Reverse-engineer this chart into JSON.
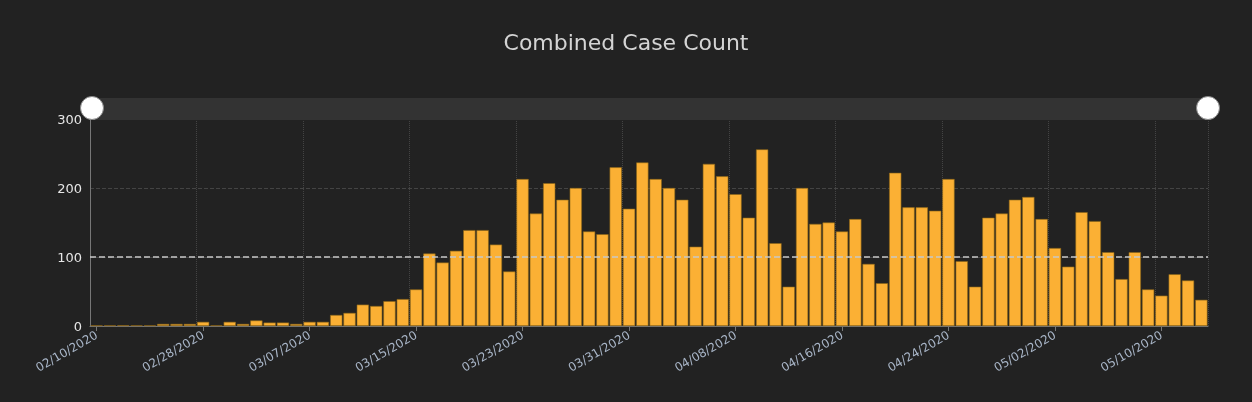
{
  "chart_data": {
    "type": "bar",
    "title": "Combined Case Count",
    "categories": [
      "02/10/2020",
      null,
      null,
      null,
      null,
      null,
      null,
      null,
      "02/28/2020",
      null,
      null,
      null,
      null,
      null,
      null,
      null,
      "03/07/2020",
      null,
      null,
      null,
      null,
      null,
      null,
      null,
      "03/15/2020",
      null,
      null,
      null,
      null,
      null,
      null,
      null,
      "03/23/2020",
      null,
      null,
      null,
      null,
      null,
      null,
      null,
      "03/31/2020",
      null,
      null,
      null,
      null,
      null,
      null,
      null,
      "04/08/2020",
      null,
      null,
      null,
      null,
      null,
      null,
      null,
      "04/16/2020",
      null,
      null,
      null,
      null,
      null,
      null,
      null,
      "04/24/2020",
      null,
      null,
      null,
      null,
      null,
      null,
      null,
      "05/02/2020",
      null,
      null,
      null,
      null,
      null,
      null,
      null,
      "05/10/2020",
      null,
      null,
      null
    ],
    "values": [
      1,
      1,
      1,
      1,
      1,
      3,
      3,
      3,
      6,
      1,
      6,
      3,
      8,
      5,
      5,
      3,
      6,
      6,
      16,
      19,
      31,
      29,
      36,
      39,
      53,
      105,
      92,
      109,
      139,
      139,
      118,
      79,
      213,
      163,
      207,
      183,
      200,
      137,
      133,
      230,
      170,
      237,
      213,
      200,
      183,
      115,
      235,
      217,
      191,
      157,
      256,
      120,
      57,
      200,
      148,
      150,
      137,
      155,
      90,
      62,
      222,
      172,
      172,
      167,
      213,
      94,
      57,
      157,
      163,
      183,
      187,
      155,
      113,
      86,
      165,
      152,
      107,
      68,
      107,
      53,
      44,
      75,
      66,
      38
    ],
    "color": "#fbb034",
    "ylim": [
      0,
      300
    ],
    "yticks": [
      0,
      100,
      200,
      300
    ],
    "grid": true,
    "ref_lines": [
      {
        "axis": "y",
        "value": 100,
        "color": "#c8c8c8",
        "line_style": "dashed"
      }
    ]
  }
}
